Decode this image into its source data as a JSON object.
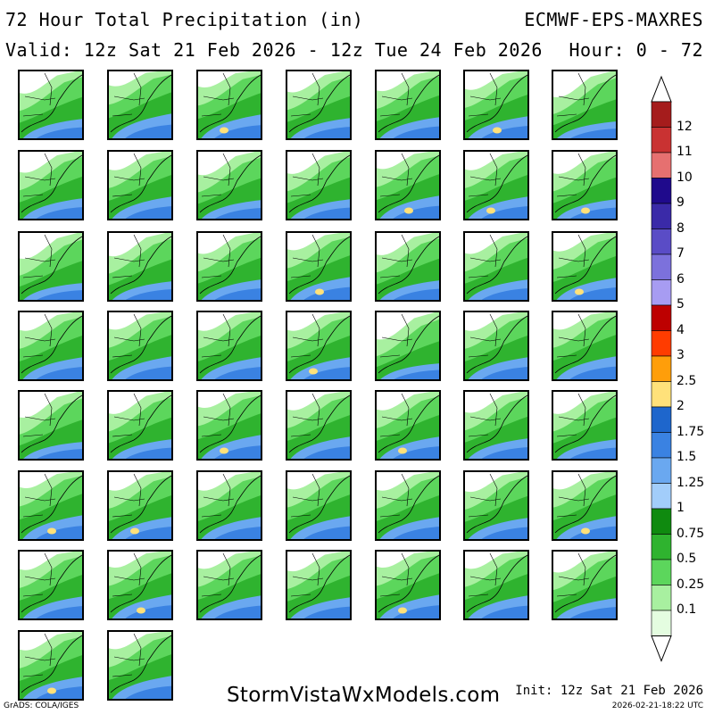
{
  "header": {
    "title": "72 Hour Total Precipitation (in)",
    "model": "ECMWF-EPS-MAXRES",
    "valid": "Valid: 12z Sat 21 Feb 2026 - 12z Tue 24 Feb 2026",
    "hour": "Hour: 0 - 72"
  },
  "footer": {
    "site": "StormVistaWxModels.com",
    "grads": "GrADS: COLA/IGES",
    "init": "Init: 12z Sat 21 Feb 2026",
    "timestamp": "2026-02-21-18:22 UTC"
  },
  "legend": {
    "items": [
      {
        "label": "12",
        "color": "#a51c1c"
      },
      {
        "label": "11",
        "color": "#c93232"
      },
      {
        "label": "10",
        "color": "#e67070"
      },
      {
        "label": "9",
        "color": "#1f0a8c"
      },
      {
        "label": "8",
        "color": "#3a2aa8"
      },
      {
        "label": "7",
        "color": "#5a4cc6"
      },
      {
        "label": "6",
        "color": "#7c71dc"
      },
      {
        "label": "5",
        "color": "#a79cf2"
      },
      {
        "label": "4",
        "color": "#bd0000"
      },
      {
        "label": "3",
        "color": "#ff3c00"
      },
      {
        "label": "2.5",
        "color": "#ff9e0a"
      },
      {
        "label": "2",
        "color": "#ffe17a"
      },
      {
        "label": "1.75",
        "color": "#1e66cc"
      },
      {
        "label": "1.5",
        "color": "#3a82e2"
      },
      {
        "label": "1.25",
        "color": "#6aa8f0"
      },
      {
        "label": "1",
        "color": "#a2cdfa"
      },
      {
        "label": "0.75",
        "color": "#0f8a0f"
      },
      {
        "label": "0.5",
        "color": "#2fb32f"
      },
      {
        "label": "0.25",
        "color": "#5cd65c"
      },
      {
        "label": "0.1",
        "color": "#a8f0a0"
      },
      {
        "label": "",
        "color": "#e4fde0"
      }
    ]
  },
  "panels": {
    "count": 51,
    "members": [
      {
        "wet": 0.55,
        "yellow": false
      },
      {
        "wet": 0.85,
        "yellow": false
      },
      {
        "wet": 0.8,
        "yellow": true
      },
      {
        "wet": 0.6,
        "yellow": false
      },
      {
        "wet": 0.65,
        "yellow": false
      },
      {
        "wet": 0.7,
        "yellow": true
      },
      {
        "wet": 0.4,
        "yellow": false
      },
      {
        "wet": 0.6,
        "yellow": false
      },
      {
        "wet": 0.7,
        "yellow": false
      },
      {
        "wet": 0.5,
        "yellow": false
      },
      {
        "wet": 0.55,
        "yellow": false
      },
      {
        "wet": 0.75,
        "yellow": true
      },
      {
        "wet": 0.7,
        "yellow": true
      },
      {
        "wet": 0.55,
        "yellow": true
      },
      {
        "wet": 0.4,
        "yellow": false
      },
      {
        "wet": 0.5,
        "yellow": false
      },
      {
        "wet": 0.6,
        "yellow": false
      },
      {
        "wet": 0.75,
        "yellow": true
      },
      {
        "wet": 0.55,
        "yellow": false
      },
      {
        "wet": 0.6,
        "yellow": false
      },
      {
        "wet": 0.7,
        "yellow": true
      },
      {
        "wet": 0.7,
        "yellow": false
      },
      {
        "wet": 0.75,
        "yellow": false
      },
      {
        "wet": 0.7,
        "yellow": false
      },
      {
        "wet": 0.7,
        "yellow": true
      },
      {
        "wet": 0.35,
        "yellow": false
      },
      {
        "wet": 0.7,
        "yellow": false
      },
      {
        "wet": 0.75,
        "yellow": false
      },
      {
        "wet": 0.4,
        "yellow": false
      },
      {
        "wet": 0.55,
        "yellow": false
      },
      {
        "wet": 0.8,
        "yellow": true
      },
      {
        "wet": 0.7,
        "yellow": false
      },
      {
        "wet": 0.7,
        "yellow": true
      },
      {
        "wet": 0.6,
        "yellow": false
      },
      {
        "wet": 0.55,
        "yellow": false
      },
      {
        "wet": 0.8,
        "yellow": true
      },
      {
        "wet": 0.7,
        "yellow": true
      },
      {
        "wet": 0.7,
        "yellow": false
      },
      {
        "wet": 0.75,
        "yellow": false
      },
      {
        "wet": 0.7,
        "yellow": false
      },
      {
        "wet": 0.65,
        "yellow": false
      },
      {
        "wet": 0.75,
        "yellow": true
      },
      {
        "wet": 0.7,
        "yellow": false
      },
      {
        "wet": 0.8,
        "yellow": true
      },
      {
        "wet": 0.75,
        "yellow": false
      },
      {
        "wet": 0.65,
        "yellow": false
      },
      {
        "wet": 0.8,
        "yellow": true
      },
      {
        "wet": 0.75,
        "yellow": false
      },
      {
        "wet": 0.6,
        "yellow": false
      },
      {
        "wet": 0.7,
        "yellow": true
      },
      {
        "wet": 0.75,
        "yellow": false
      }
    ]
  }
}
